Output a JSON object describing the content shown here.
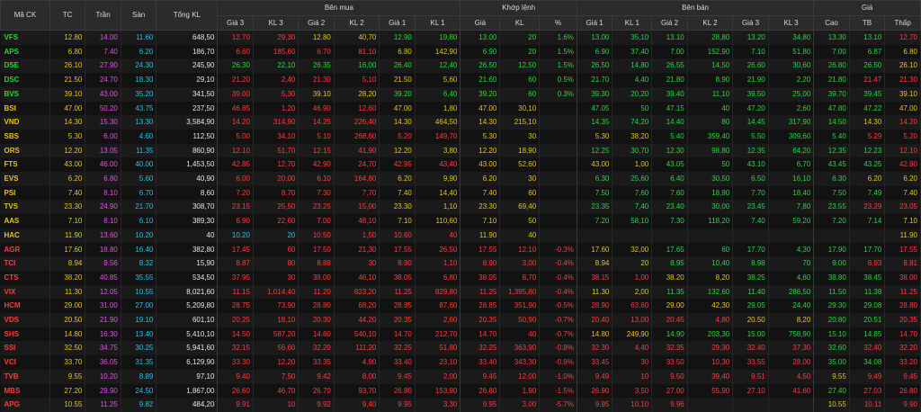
{
  "columns": {
    "group_buy": "Bên mua",
    "group_match": "Khớp lệnh",
    "group_sell": "Bên bán",
    "group_price": "Giá",
    "sym": "Mã CK",
    "tc": "TC",
    "tran": "Trần",
    "san": "Sàn",
    "tongkl": "Tổng KL",
    "gia3": "Giá 3",
    "kl3": "KL 3",
    "gia2": "Giá 2",
    "kl2": "KL 2",
    "gia1": "Giá 1",
    "kl1": "KL 1",
    "m_gia": "Giá",
    "m_kl": "KL",
    "m_pct": "%",
    "s_gia1": "Giá 1",
    "s_kl1": "KL 1",
    "s_gia2": "Giá 2",
    "s_kl2": "KL 2",
    "s_gia3": "Giá 3",
    "s_kl3": "KL 3",
    "cao": "Cao",
    "tb": "TB",
    "thap": "Thấp"
  },
  "colors": {
    "ceiling": "#e152e4",
    "floor": "#27c2e3",
    "reference": "#e6c21d",
    "up": "#27d73b",
    "down": "#ff3b3b"
  },
  "rows": [
    {
      "sym": "VFS",
      "tc": "12.80",
      "tran": "14.00",
      "san": "11.60",
      "tkl": "648,50",
      "b3": "12.70",
      "bk3": "29,30",
      "b2": "12.80",
      "bk2": "40,70",
      "b1": "12.90",
      "bk1": "19,80",
      "mp": "13.00",
      "mk": "20",
      "pct": "1.6%",
      "s1": "13.00",
      "sk1": "35,10",
      "s2": "13.10",
      "sk2": "28,80",
      "s3": "13.20",
      "sk3": "34,80",
      "hi": "13.30",
      "avg": "13.10",
      "lo": "12.70"
    },
    {
      "sym": "APS",
      "tc": "6.80",
      "tran": "7.40",
      "san": "6.20",
      "tkl": "186,70",
      "b3": "6.60",
      "bk3": "185,60",
      "b2": "6.70",
      "bk2": "81,10",
      "b1": "6.80",
      "bk1": "142,90",
      "mp": "6.90",
      "mk": "20",
      "pct": "1.5%",
      "s1": "6.90",
      "sk1": "37,40",
      "s2": "7.00",
      "sk2": "152,90",
      "s3": "7.10",
      "sk3": "51,80",
      "hi": "7.00",
      "avg": "6.87",
      "lo": "6.80"
    },
    {
      "sym": "DSE",
      "tc": "26.10",
      "tran": "27.90",
      "san": "24.30",
      "tkl": "245,90",
      "b3": "26.30",
      "bk3": "22,10",
      "b2": "26.35",
      "bk2": "16,00",
      "b1": "26.40",
      "bk1": "12,40",
      "mp": "26.50",
      "mk": "12,50",
      "pct": "1.5%",
      "s1": "26.50",
      "sk1": "14,80",
      "s2": "26.55",
      "sk2": "14,50",
      "s3": "26.60",
      "sk3": "30,60",
      "hi": "26.80",
      "avg": "26.50",
      "lo": "26.10"
    },
    {
      "sym": "DSC",
      "tc": "21.50",
      "tran": "24.70",
      "san": "18.30",
      "tkl": "29,10",
      "b3": "21.20",
      "bk3": "2,40",
      "b2": "21.30",
      "bk2": "5,10",
      "b1": "21.50",
      "bk1": "5,60",
      "mp": "21.60",
      "mk": "60",
      "pct": "0.5%",
      "s1": "21.70",
      "sk1": "4,40",
      "s2": "21.80",
      "sk2": "8,90",
      "s3": "21.90",
      "sk3": "2,20",
      "hi": "21.80",
      "avg": "21.47",
      "lo": "21.30"
    },
    {
      "sym": "BVS",
      "tc": "39.10",
      "tran": "43.00",
      "san": "35.20",
      "tkl": "341,50",
      "b3": "39.00",
      "bk3": "5,30",
      "b2": "39.10",
      "bk2": "28,20",
      "b1": "39.20",
      "bk1": "6,40",
      "mp": "39.20",
      "mk": "60",
      "pct": "0.3%",
      "s1": "39.30",
      "sk1": "20,20",
      "s2": "39.40",
      "sk2": "11,10",
      "s3": "39.50",
      "sk3": "25,00",
      "hi": "39.70",
      "avg": "39.45",
      "lo": "39.10"
    },
    {
      "sym": "BSI",
      "tc": "47.00",
      "tran": "50.20",
      "san": "43.75",
      "tkl": "237,50",
      "b3": "46.85",
      "bk3": "1,20",
      "b2": "46.90",
      "bk2": "12,60",
      "b1": "47.00",
      "bk1": "1,80",
      "mp": "47.00",
      "mk": "30,10",
      "pct": "",
      "s1": "47.05",
      "sk1": "50",
      "s2": "47.15",
      "sk2": "40",
      "s3": "47.20",
      "sk3": "2,60",
      "hi": "47.80",
      "avg": "47.22",
      "lo": "47.00"
    },
    {
      "sym": "VND",
      "tc": "14.30",
      "tran": "15.30",
      "san": "13.30",
      "tkl": "3,584,90",
      "b3": "14.20",
      "bk3": "314,90",
      "b2": "14.25",
      "bk2": "226,40",
      "b1": "14.30",
      "bk1": "464,50",
      "mp": "14.30",
      "mk": "215,10",
      "pct": "",
      "s1": "14.35",
      "sk1": "74,20",
      "s2": "14.40",
      "sk2": "80",
      "s3": "14.45",
      "sk3": "317,90",
      "hi": "14.50",
      "avg": "14.30",
      "lo": "14.20"
    },
    {
      "sym": "SBS",
      "tc": "5.30",
      "tran": "6.00",
      "san": "4.60",
      "tkl": "112,50",
      "b3": "5.00",
      "bk3": "34,10",
      "b2": "5.10",
      "bk2": "268,60",
      "b1": "5.20",
      "bk1": "149,70",
      "mp": "5.30",
      "mk": "30",
      "pct": "",
      "s1": "5.30",
      "sk1": "38,20",
      "s2": "5.40",
      "sk2": "359,40",
      "s3": "5.50",
      "sk3": "309,60",
      "hi": "5.40",
      "avg": "5.29",
      "lo": "5.20"
    },
    {
      "sym": "ORS",
      "tc": "12.20",
      "tran": "13.05",
      "san": "11.35",
      "tkl": "860,90",
      "b3": "12.10",
      "bk3": "51,70",
      "b2": "12.15",
      "bk2": "41,90",
      "b1": "12.20",
      "bk1": "3,80",
      "mp": "12.20",
      "mk": "18,90",
      "pct": "",
      "s1": "12.25",
      "sk1": "30,70",
      "s2": "12.30",
      "sk2": "98,80",
      "s3": "12.35",
      "sk3": "64,20",
      "hi": "12.35",
      "avg": "12.23",
      "lo": "12.10"
    },
    {
      "sym": "FTS",
      "tc": "43.00",
      "tran": "46.00",
      "san": "40.00",
      "tkl": "1,453,50",
      "b3": "42.85",
      "bk3": "12,70",
      "b2": "42.90",
      "bk2": "24,70",
      "b1": "42.95",
      "bk1": "43,40",
      "mp": "43.00",
      "mk": "52,60",
      "pct": "",
      "s1": "43.00",
      "sk1": "1,00",
      "s2": "43.05",
      "sk2": "50",
      "s3": "43.10",
      "sk3": "6,70",
      "hi": "43.45",
      "avg": "43.25",
      "lo": "42.90"
    },
    {
      "sym": "EVS",
      "tc": "6.20",
      "tran": "6.80",
      "san": "5.60",
      "tkl": "40,90",
      "b3": "6.00",
      "bk3": "20,00",
      "b2": "6.10",
      "bk2": "164,80",
      "b1": "6.20",
      "bk1": "9,90",
      "mp": "6.20",
      "mk": "30",
      "pct": "",
      "s1": "6.30",
      "sk1": "25,60",
      "s2": "6.40",
      "sk2": "30,50",
      "s3": "6.50",
      "sk3": "16,10",
      "hi": "6.30",
      "avg": "6.20",
      "lo": "6.20"
    },
    {
      "sym": "PSI",
      "tc": "7.40",
      "tran": "8.10",
      "san": "6.70",
      "tkl": "8,60",
      "b3": "7.20",
      "bk3": "8,70",
      "b2": "7.30",
      "bk2": "7,70",
      "b1": "7.40",
      "bk1": "14,40",
      "mp": "7.40",
      "mk": "60",
      "pct": "",
      "s1": "7.50",
      "sk1": "7,60",
      "s2": "7.60",
      "sk2": "18,90",
      "s3": "7.70",
      "sk3": "18,40",
      "hi": "7.50",
      "avg": "7.49",
      "lo": "7.40"
    },
    {
      "sym": "TVS",
      "tc": "23.30",
      "tran": "24.90",
      "san": "21.70",
      "tkl": "308,70",
      "b3": "23.15",
      "bk3": "25,50",
      "b2": "23.25",
      "bk2": "15,00",
      "b1": "23.30",
      "bk1": "1,10",
      "mp": "23.30",
      "mk": "69,40",
      "pct": "",
      "s1": "23.35",
      "sk1": "7,40",
      "s2": "23.40",
      "sk2": "30,00",
      "s3": "23.45",
      "sk3": "7,80",
      "hi": "23.55",
      "avg": "23.29",
      "lo": "23.05"
    },
    {
      "sym": "AAS",
      "tc": "7.10",
      "tran": "8.10",
      "san": "6.10",
      "tkl": "389,30",
      "b3": "6.90",
      "bk3": "22,60",
      "b2": "7.00",
      "bk2": "48,10",
      "b1": "7.10",
      "bk1": "110,60",
      "mp": "7.10",
      "mk": "50",
      "pct": "",
      "s1": "7.20",
      "sk1": "58,10",
      "s2": "7.30",
      "sk2": "118,20",
      "s3": "7.40",
      "sk3": "59,20",
      "hi": "7.20",
      "avg": "7.14",
      "lo": "7.10"
    },
    {
      "sym": "HAC",
      "tc": "11.90",
      "tran": "13.60",
      "san": "10.20",
      "tkl": "40",
      "b3": "10.20",
      "bk3": "20",
      "b2": "10.50",
      "bk2": "1,50",
      "b1": "10.60",
      "bk1": "40",
      "mp": "11.90",
      "mk": "40",
      "pct": "",
      "s1": "",
      "sk1": "",
      "s2": "",
      "sk2": "",
      "s3": "",
      "sk3": "",
      "hi": "",
      "avg": "",
      "lo": "11.90"
    },
    {
      "sym": "AGR",
      "tc": "17.60",
      "tran": "18.80",
      "san": "16.40",
      "tkl": "382,80",
      "b3": "17.45",
      "bk3": "60",
      "b2": "17.50",
      "bk2": "21,30",
      "b1": "17.55",
      "bk1": "26,50",
      "mp": "17.55",
      "mk": "12,10",
      "pct": "-0.3%",
      "s1": "17.60",
      "sk1": "32,00",
      "s2": "17.65",
      "sk2": "60",
      "s3": "17.70",
      "sk3": "4,30",
      "hi": "17.90",
      "avg": "17.70",
      "lo": "17.55"
    },
    {
      "sym": "TCI",
      "tc": "8.94",
      "tran": "9.56",
      "san": "8.32",
      "tkl": "15,90",
      "b3": "8.87",
      "bk3": "80",
      "b2": "8.88",
      "bk2": "30",
      "b1": "8.90",
      "bk1": "1,10",
      "mp": "8.90",
      "mk": "3,00",
      "pct": "-0.4%",
      "s1": "8.94",
      "sk1": "20",
      "s2": "8.95",
      "sk2": "10,40",
      "s3": "8.98",
      "sk3": "70",
      "hi": "9.00",
      "avg": "8.93",
      "lo": "8.81"
    },
    {
      "sym": "CTS",
      "tc": "38.20",
      "tran": "40.85",
      "san": "35.55",
      "tkl": "534,50",
      "b3": "37.95",
      "bk3": "30",
      "b2": "38.00",
      "bk2": "46,10",
      "b1": "38.05",
      "bk1": "6,80",
      "mp": "38.05",
      "mk": "8,70",
      "pct": "-0.4%",
      "s1": "38.15",
      "sk1": "1,00",
      "s2": "38.20",
      "sk2": "8,20",
      "s3": "38.25",
      "sk3": "4,60",
      "hi": "38.80",
      "avg": "38.45",
      "lo": "38.00"
    },
    {
      "sym": "VIX",
      "tc": "11.30",
      "tran": "12.05",
      "san": "10.55",
      "tkl": "8,021,60",
      "b3": "11.15",
      "bk3": "1,014,40",
      "b2": "11.20",
      "bk2": "823,20",
      "b1": "11.25",
      "bk1": "829,80",
      "mp": "11.25",
      "mk": "1,395,80",
      "pct": "-0.4%",
      "s1": "11.30",
      "sk1": "2,00",
      "s2": "11.35",
      "sk2": "132,60",
      "s3": "11.40",
      "sk3": "286,50",
      "hi": "11.50",
      "avg": "11.38",
      "lo": "11.25"
    },
    {
      "sym": "HCM",
      "tc": "29.00",
      "tran": "31.00",
      "san": "27.00",
      "tkl": "5,209,80",
      "b3": "28.75",
      "bk3": "73,90",
      "b2": "28.80",
      "bk2": "68,20",
      "b1": "28.85",
      "bk1": "87,60",
      "mp": "28.85",
      "mk": "351,90",
      "pct": "-0.5%",
      "s1": "28.90",
      "sk1": "63,60",
      "s2": "29.00",
      "sk2": "42,30",
      "s3": "29.05",
      "sk3": "24,40",
      "hi": "29.30",
      "avg": "29.08",
      "lo": "28.80"
    },
    {
      "sym": "VDS",
      "tc": "20.50",
      "tran": "21.90",
      "san": "19.10",
      "tkl": "601,10",
      "b3": "20.25",
      "bk3": "18,10",
      "b2": "20.30",
      "bk2": "44,20",
      "b1": "20.35",
      "bk1": "2,60",
      "mp": "20.35",
      "mk": "50,90",
      "pct": "-0.7%",
      "s1": "20.40",
      "sk1": "13,00",
      "s2": "20.45",
      "sk2": "4,80",
      "s3": "20.50",
      "sk3": "8,20",
      "hi": "20.80",
      "avg": "20.51",
      "lo": "20.35"
    },
    {
      "sym": "SHS",
      "tc": "14.80",
      "tran": "16.30",
      "san": "13.40",
      "tkl": "5,410,10",
      "b3": "14.50",
      "bk3": "587,20",
      "b2": "14.60",
      "bk2": "540,10",
      "b1": "14.70",
      "bk1": "212,70",
      "mp": "14.70",
      "mk": "40",
      "pct": "-0.7%",
      "s1": "14.80",
      "sk1": "249,90",
      "s2": "14.90",
      "sk2": "203,30",
      "s3": "15.00",
      "sk3": "758,90",
      "hi": "15.10",
      "avg": "14.85",
      "lo": "14.70"
    },
    {
      "sym": "SSI",
      "tc": "32.50",
      "tran": "34.75",
      "san": "30.25",
      "tkl": "5,941,60",
      "b3": "32.15",
      "bk3": "56,60",
      "b2": "32.20",
      "bk2": "111,20",
      "b1": "32.25",
      "bk1": "51,80",
      "mp": "32.25",
      "mk": "363,90",
      "pct": "-0.8%",
      "s1": "32.30",
      "sk1": "4,40",
      "s2": "32.35",
      "sk2": "29,30",
      "s3": "32.40",
      "sk3": "37,30",
      "hi": "32.60",
      "avg": "32.40",
      "lo": "32.20"
    },
    {
      "sym": "VCI",
      "tc": "33.70",
      "tran": "36.05",
      "san": "31.35",
      "tkl": "6,129,90",
      "b3": "33.30",
      "bk3": "12,20",
      "b2": "33.35",
      "bk2": "4,90",
      "b1": "33.40",
      "bk1": "23,10",
      "mp": "33.40",
      "mk": "343,30",
      "pct": "-0.9%",
      "s1": "33.45",
      "sk1": "30",
      "s2": "33.50",
      "sk2": "10,30",
      "s3": "33.55",
      "sk3": "28,00",
      "hi": "35.00",
      "avg": "34.08",
      "lo": "33.20"
    },
    {
      "sym": "TVB",
      "tc": "9.55",
      "tran": "10.20",
      "san": "8.89",
      "tkl": "97,10",
      "b3": "9.40",
      "bk3": "7,50",
      "b2": "9.42",
      "bk2": "8,00",
      "b1": "9.45",
      "bk1": "2,00",
      "mp": "9.45",
      "mk": "12,00",
      "pct": "-1.0%",
      "s1": "9.49",
      "sk1": "10",
      "s2": "9.50",
      "sk2": "39,40",
      "s3": "9.51",
      "sk3": "4,50",
      "hi": "9.55",
      "avg": "9.49",
      "lo": "9.45"
    },
    {
      "sym": "MBS",
      "tc": "27.20",
      "tran": "29.90",
      "san": "24.50",
      "tkl": "1,867,00",
      "b3": "26.60",
      "bk3": "46,70",
      "b2": "26.70",
      "bk2": "93,70",
      "b1": "26.80",
      "bk1": "153,90",
      "mp": "26.80",
      "mk": "1,90",
      "pct": "-1.5%",
      "s1": "26.90",
      "sk1": "3,50",
      "s2": "27.00",
      "sk2": "55,90",
      "s3": "27.10",
      "sk3": "41,60",
      "hi": "27.40",
      "avg": "27.03",
      "lo": "26.80"
    },
    {
      "sym": "APG",
      "tc": "10.55",
      "tran": "11.25",
      "san": "9.82",
      "tkl": "484,20",
      "b3": "9.91",
      "bk3": "10",
      "b2": "9.92",
      "bk2": "9,40",
      "b1": "9.95",
      "bk1": "3,30",
      "mp": "9.95",
      "mk": "3,00",
      "pct": "-5.7%",
      "s1": "9.95",
      "sk1": "10,10",
      "s2": "9.96",
      "sk2": "",
      "s3": "",
      "sk3": "",
      "hi": "10.55",
      "avg": "10.11",
      "lo": "9.90"
    }
  ]
}
